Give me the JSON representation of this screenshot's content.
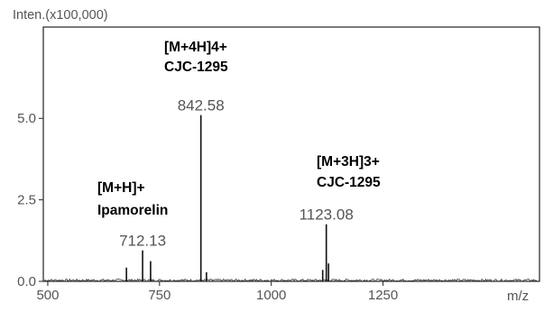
{
  "chart_data": {
    "type": "line",
    "title": "",
    "ylabel": "Inten.(x100,000)",
    "xlabel": "m/z",
    "xlim": [
      490,
      1600
    ],
    "ylim": [
      0,
      7.8
    ],
    "x_ticks": [
      500,
      750,
      1000,
      1250
    ],
    "x_tick_labels": [
      "500",
      "750",
      "1000",
      "1250"
    ],
    "y_ticks": [
      0,
      2.5,
      5.0
    ],
    "y_tick_labels": [
      "0.0",
      "2.5",
      "5.0"
    ],
    "peaks": [
      {
        "x": 676,
        "y": 0.42
      },
      {
        "x": 712.13,
        "y": 0.95,
        "label": "712.13"
      },
      {
        "x": 730,
        "y": 0.62
      },
      {
        "x": 842.58,
        "y": 5.1,
        "label": "842.58"
      },
      {
        "x": 855,
        "y": 0.28
      },
      {
        "x": 1115,
        "y": 0.35
      },
      {
        "x": 1123.08,
        "y": 1.75,
        "label": "1123.08"
      },
      {
        "x": 1128,
        "y": 0.55
      }
    ],
    "annotations": [
      {
        "line1": "[M+4H]4+",
        "line2": "CJC-1295"
      },
      {
        "line1": "[M+H]+",
        "line2": "Ipamorelin"
      },
      {
        "line1": "[M+3H]3+",
        "line2": "CJC-1295"
      }
    ],
    "grid": false,
    "colors": {
      "axis": "#222222",
      "peak": "#111111",
      "tick_text": "#555555",
      "annotation": "#000000"
    }
  }
}
